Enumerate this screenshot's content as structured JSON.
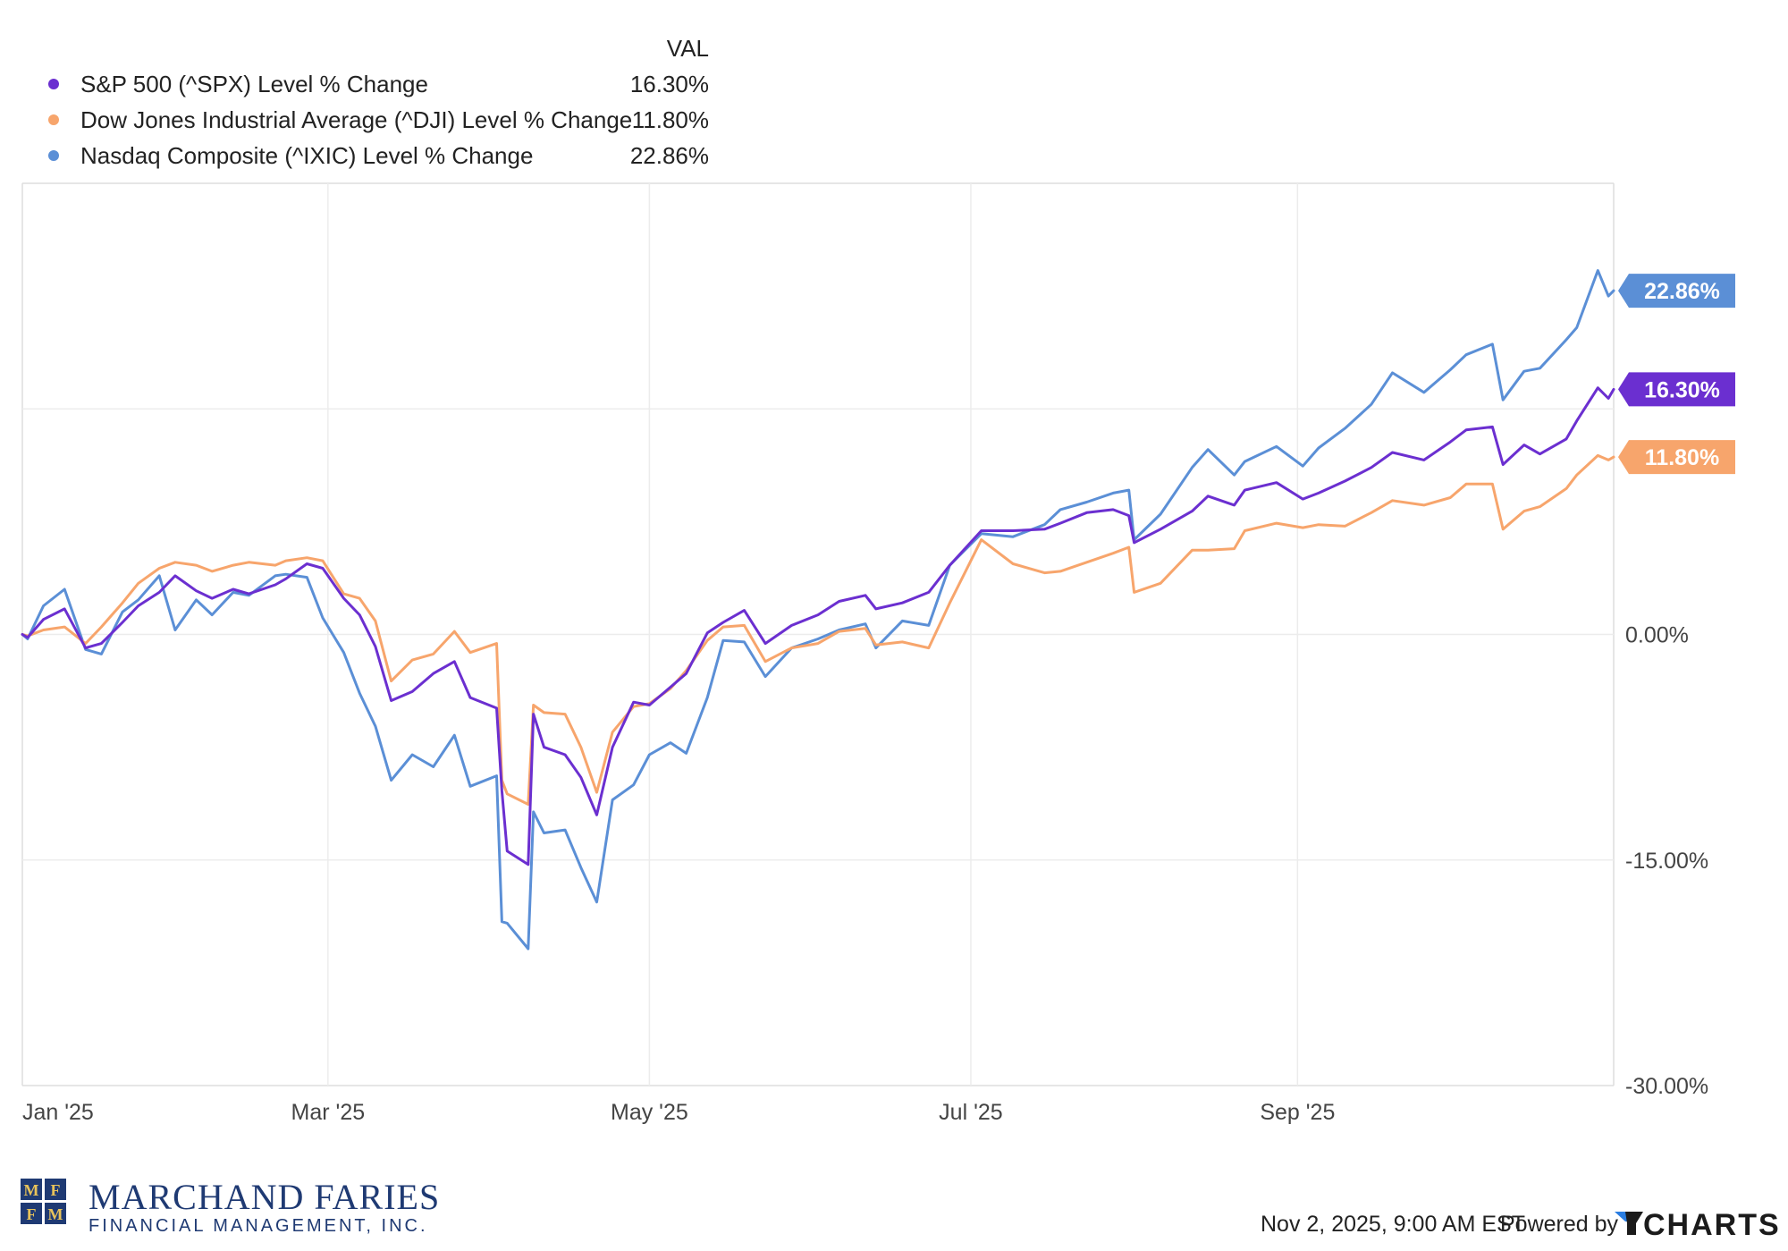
{
  "legend": {
    "value_header": "VAL"
  },
  "chart_data": {
    "type": "line",
    "x_tick_labels": [
      "Jan '25",
      "Mar '25",
      "May '25",
      "Jul '25",
      "Sep '25"
    ],
    "y_tick_labels": [
      "0.00%",
      "-15.00%",
      "-30.00%"
    ],
    "ylim": [
      -30,
      30
    ],
    "y_unit": "%",
    "grid": true,
    "legend_position": "top-left",
    "series": [
      {
        "key": "spx",
        "name": "S&P 500 (^SPX) Level % Change",
        "value_label": "16.30%",
        "end_value": 16.3,
        "color": "#6b2fd0",
        "points": [
          [
            "2025-01-02",
            0.0
          ],
          [
            "2025-01-03",
            -0.2
          ],
          [
            "2025-01-06",
            1.0
          ],
          [
            "2025-01-10",
            1.7
          ],
          [
            "2025-01-14",
            -0.9
          ],
          [
            "2025-01-17",
            -0.6
          ],
          [
            "2025-01-21",
            0.8
          ],
          [
            "2025-01-24",
            1.9
          ],
          [
            "2025-01-28",
            2.8
          ],
          [
            "2025-01-31",
            3.9
          ],
          [
            "2025-02-04",
            2.9
          ],
          [
            "2025-02-07",
            2.4
          ],
          [
            "2025-02-11",
            3.0
          ],
          [
            "2025-02-14",
            2.7
          ],
          [
            "2025-02-19",
            3.3
          ],
          [
            "2025-02-21",
            3.7
          ],
          [
            "2025-02-25",
            4.7
          ],
          [
            "2025-02-28",
            4.4
          ],
          [
            "2025-03-04",
            2.4
          ],
          [
            "2025-03-07",
            1.3
          ],
          [
            "2025-03-10",
            -0.8
          ],
          [
            "2025-03-13",
            -4.4
          ],
          [
            "2025-03-17",
            -3.8
          ],
          [
            "2025-03-21",
            -2.6
          ],
          [
            "2025-03-25",
            -1.8
          ],
          [
            "2025-03-28",
            -4.2
          ],
          [
            "2025-04-02",
            -4.9
          ],
          [
            "2025-04-03",
            -10.4
          ],
          [
            "2025-04-04",
            -14.4
          ],
          [
            "2025-04-08",
            -15.3
          ],
          [
            "2025-04-09",
            -5.3
          ],
          [
            "2025-04-11",
            -7.5
          ],
          [
            "2025-04-15",
            -8.0
          ],
          [
            "2025-04-18",
            -9.5
          ],
          [
            "2025-04-21",
            -12.0
          ],
          [
            "2025-04-24",
            -7.5
          ],
          [
            "2025-04-28",
            -4.5
          ],
          [
            "2025-05-01",
            -4.7
          ],
          [
            "2025-05-05",
            -3.5
          ],
          [
            "2025-05-08",
            -2.6
          ],
          [
            "2025-05-12",
            0.1
          ],
          [
            "2025-05-15",
            0.8
          ],
          [
            "2025-05-19",
            1.6
          ],
          [
            "2025-05-23",
            -0.6
          ],
          [
            "2025-05-28",
            0.6
          ],
          [
            "2025-06-02",
            1.3
          ],
          [
            "2025-06-06",
            2.2
          ],
          [
            "2025-06-11",
            2.6
          ],
          [
            "2025-06-13",
            1.7
          ],
          [
            "2025-06-18",
            2.1
          ],
          [
            "2025-06-23",
            2.8
          ],
          [
            "2025-06-27",
            4.6
          ],
          [
            "2025-07-03",
            6.9
          ],
          [
            "2025-07-09",
            6.9
          ],
          [
            "2025-07-15",
            7.0
          ],
          [
            "2025-07-18",
            7.4
          ],
          [
            "2025-07-23",
            8.1
          ],
          [
            "2025-07-28",
            8.3
          ],
          [
            "2025-07-31",
            7.9
          ],
          [
            "2025-08-01",
            6.1
          ],
          [
            "2025-08-06",
            7.0
          ],
          [
            "2025-08-12",
            8.2
          ],
          [
            "2025-08-15",
            9.2
          ],
          [
            "2025-08-20",
            8.6
          ],
          [
            "2025-08-22",
            9.6
          ],
          [
            "2025-08-28",
            10.1
          ],
          [
            "2025-09-02",
            9.0
          ],
          [
            "2025-09-05",
            9.4
          ],
          [
            "2025-09-10",
            10.2
          ],
          [
            "2025-09-15",
            11.1
          ],
          [
            "2025-09-19",
            12.1
          ],
          [
            "2025-09-25",
            11.6
          ],
          [
            "2025-09-30",
            12.8
          ],
          [
            "2025-10-03",
            13.6
          ],
          [
            "2025-10-08",
            13.8
          ],
          [
            "2025-10-10",
            11.3
          ],
          [
            "2025-10-14",
            12.6
          ],
          [
            "2025-10-17",
            12.0
          ],
          [
            "2025-10-22",
            13.0
          ],
          [
            "2025-10-24",
            14.2
          ],
          [
            "2025-10-28",
            16.4
          ],
          [
            "2025-10-30",
            15.7
          ],
          [
            "2025-10-31",
            16.3
          ]
        ]
      },
      {
        "key": "dji",
        "name": "Dow Jones Industrial Average (^DJI) Level % Change",
        "value_label": "11.80%",
        "end_value": 11.8,
        "color": "#f7a56c",
        "points": [
          [
            "2025-01-02",
            0.0
          ],
          [
            "2025-01-03",
            -0.1
          ],
          [
            "2025-01-06",
            0.3
          ],
          [
            "2025-01-10",
            0.5
          ],
          [
            "2025-01-14",
            -0.6
          ],
          [
            "2025-01-17",
            0.5
          ],
          [
            "2025-01-21",
            2.1
          ],
          [
            "2025-01-24",
            3.4
          ],
          [
            "2025-01-28",
            4.4
          ],
          [
            "2025-01-31",
            4.8
          ],
          [
            "2025-02-04",
            4.6
          ],
          [
            "2025-02-07",
            4.2
          ],
          [
            "2025-02-11",
            4.6
          ],
          [
            "2025-02-14",
            4.8
          ],
          [
            "2025-02-19",
            4.6
          ],
          [
            "2025-02-21",
            4.9
          ],
          [
            "2025-02-25",
            5.1
          ],
          [
            "2025-02-28",
            4.9
          ],
          [
            "2025-03-04",
            2.7
          ],
          [
            "2025-03-07",
            2.4
          ],
          [
            "2025-03-10",
            0.9
          ],
          [
            "2025-03-13",
            -3.1
          ],
          [
            "2025-03-17",
            -1.7
          ],
          [
            "2025-03-21",
            -1.3
          ],
          [
            "2025-03-25",
            0.2
          ],
          [
            "2025-03-28",
            -1.2
          ],
          [
            "2025-04-02",
            -0.6
          ],
          [
            "2025-04-03",
            -9.7
          ],
          [
            "2025-04-04",
            -10.6
          ],
          [
            "2025-04-08",
            -11.3
          ],
          [
            "2025-04-09",
            -4.7
          ],
          [
            "2025-04-11",
            -5.2
          ],
          [
            "2025-04-15",
            -5.3
          ],
          [
            "2025-04-18",
            -7.5
          ],
          [
            "2025-04-21",
            -10.5
          ],
          [
            "2025-04-24",
            -6.5
          ],
          [
            "2025-04-28",
            -4.8
          ],
          [
            "2025-05-01",
            -4.6
          ],
          [
            "2025-05-05",
            -3.6
          ],
          [
            "2025-05-08",
            -2.4
          ],
          [
            "2025-05-12",
            -0.4
          ],
          [
            "2025-05-15",
            0.5
          ],
          [
            "2025-05-19",
            0.6
          ],
          [
            "2025-05-23",
            -1.8
          ],
          [
            "2025-05-28",
            -0.9
          ],
          [
            "2025-06-02",
            -0.6
          ],
          [
            "2025-06-06",
            0.2
          ],
          [
            "2025-06-11",
            0.4
          ],
          [
            "2025-06-13",
            -0.7
          ],
          [
            "2025-06-18",
            -0.5
          ],
          [
            "2025-06-23",
            -0.9
          ],
          [
            "2025-06-27",
            2.1
          ],
          [
            "2025-07-03",
            6.3
          ],
          [
            "2025-07-09",
            4.7
          ],
          [
            "2025-07-15",
            4.1
          ],
          [
            "2025-07-18",
            4.2
          ],
          [
            "2025-07-23",
            4.8
          ],
          [
            "2025-07-28",
            5.4
          ],
          [
            "2025-07-31",
            5.8
          ],
          [
            "2025-08-01",
            2.8
          ],
          [
            "2025-08-06",
            3.4
          ],
          [
            "2025-08-12",
            5.6
          ],
          [
            "2025-08-15",
            5.6
          ],
          [
            "2025-08-20",
            5.7
          ],
          [
            "2025-08-22",
            6.9
          ],
          [
            "2025-08-28",
            7.4
          ],
          [
            "2025-09-02",
            7.1
          ],
          [
            "2025-09-05",
            7.3
          ],
          [
            "2025-09-10",
            7.2
          ],
          [
            "2025-09-15",
            8.1
          ],
          [
            "2025-09-19",
            8.9
          ],
          [
            "2025-09-25",
            8.6
          ],
          [
            "2025-09-30",
            9.1
          ],
          [
            "2025-10-03",
            10.0
          ],
          [
            "2025-10-08",
            10.0
          ],
          [
            "2025-10-10",
            7.0
          ],
          [
            "2025-10-14",
            8.2
          ],
          [
            "2025-10-17",
            8.5
          ],
          [
            "2025-10-22",
            9.7
          ],
          [
            "2025-10-24",
            10.6
          ],
          [
            "2025-10-28",
            11.9
          ],
          [
            "2025-10-30",
            11.6
          ],
          [
            "2025-10-31",
            11.8
          ]
        ]
      },
      {
        "key": "ixic",
        "name": "Nasdaq Composite (^IXIC) Level % Change",
        "value_label": "22.86%",
        "end_value": 22.86,
        "color": "#5b8fd6",
        "points": [
          [
            "2025-01-02",
            0.0
          ],
          [
            "2025-01-03",
            -0.3
          ],
          [
            "2025-01-06",
            1.9
          ],
          [
            "2025-01-10",
            3.0
          ],
          [
            "2025-01-14",
            -1.0
          ],
          [
            "2025-01-17",
            -1.3
          ],
          [
            "2025-01-21",
            1.5
          ],
          [
            "2025-01-24",
            2.3
          ],
          [
            "2025-01-28",
            3.9
          ],
          [
            "2025-01-31",
            0.3
          ],
          [
            "2025-02-04",
            2.3
          ],
          [
            "2025-02-07",
            1.3
          ],
          [
            "2025-02-11",
            2.8
          ],
          [
            "2025-02-14",
            2.6
          ],
          [
            "2025-02-19",
            3.9
          ],
          [
            "2025-02-21",
            4.0
          ],
          [
            "2025-02-25",
            3.8
          ],
          [
            "2025-02-28",
            1.1
          ],
          [
            "2025-03-04",
            -1.2
          ],
          [
            "2025-03-07",
            -3.9
          ],
          [
            "2025-03-10",
            -6.1
          ],
          [
            "2025-03-13",
            -9.7
          ],
          [
            "2025-03-17",
            -8.0
          ],
          [
            "2025-03-21",
            -8.8
          ],
          [
            "2025-03-25",
            -6.7
          ],
          [
            "2025-03-28",
            -10.1
          ],
          [
            "2025-04-02",
            -9.4
          ],
          [
            "2025-04-03",
            -19.1
          ],
          [
            "2025-04-04",
            -19.2
          ],
          [
            "2025-04-08",
            -20.9
          ],
          [
            "2025-04-09",
            -11.8
          ],
          [
            "2025-04-11",
            -13.2
          ],
          [
            "2025-04-15",
            -13.0
          ],
          [
            "2025-04-18",
            -15.5
          ],
          [
            "2025-04-21",
            -17.8
          ],
          [
            "2025-04-24",
            -11.0
          ],
          [
            "2025-04-28",
            -10.0
          ],
          [
            "2025-05-01",
            -8.0
          ],
          [
            "2025-05-05",
            -7.2
          ],
          [
            "2025-05-08",
            -7.9
          ],
          [
            "2025-05-12",
            -4.2
          ],
          [
            "2025-05-15",
            -0.4
          ],
          [
            "2025-05-19",
            -0.5
          ],
          [
            "2025-05-23",
            -2.8
          ],
          [
            "2025-05-28",
            -0.9
          ],
          [
            "2025-06-02",
            -0.3
          ],
          [
            "2025-06-06",
            0.3
          ],
          [
            "2025-06-11",
            0.7
          ],
          [
            "2025-06-13",
            -0.9
          ],
          [
            "2025-06-18",
            0.9
          ],
          [
            "2025-06-23",
            0.6
          ],
          [
            "2025-06-27",
            4.6
          ],
          [
            "2025-07-03",
            6.7
          ],
          [
            "2025-07-09",
            6.5
          ],
          [
            "2025-07-15",
            7.3
          ],
          [
            "2025-07-18",
            8.3
          ],
          [
            "2025-07-23",
            8.8
          ],
          [
            "2025-07-28",
            9.4
          ],
          [
            "2025-07-31",
            9.6
          ],
          [
            "2025-08-01",
            6.3
          ],
          [
            "2025-08-06",
            8.0
          ],
          [
            "2025-08-12",
            11.1
          ],
          [
            "2025-08-15",
            12.3
          ],
          [
            "2025-08-20",
            10.6
          ],
          [
            "2025-08-22",
            11.5
          ],
          [
            "2025-08-28",
            12.5
          ],
          [
            "2025-09-02",
            11.2
          ],
          [
            "2025-09-05",
            12.4
          ],
          [
            "2025-09-10",
            13.7
          ],
          [
            "2025-09-15",
            15.3
          ],
          [
            "2025-09-19",
            17.4
          ],
          [
            "2025-09-25",
            16.1
          ],
          [
            "2025-09-30",
            17.6
          ],
          [
            "2025-10-03",
            18.6
          ],
          [
            "2025-10-08",
            19.3
          ],
          [
            "2025-10-10",
            15.6
          ],
          [
            "2025-10-14",
            17.5
          ],
          [
            "2025-10-17",
            17.7
          ],
          [
            "2025-10-22",
            19.6
          ],
          [
            "2025-10-24",
            20.4
          ],
          [
            "2025-10-28",
            24.2
          ],
          [
            "2025-10-30",
            22.5
          ],
          [
            "2025-10-31",
            22.86
          ]
        ]
      }
    ]
  },
  "footer": {
    "brand_name": "MARCHAND FARIES",
    "brand_subtitle": "FINANCIAL MANAGEMENT, INC.",
    "logo_letters": [
      "M",
      "F",
      "F",
      "M"
    ],
    "timestamp": "Nov 2, 2025, 9:00 AM EST",
    "powered_by": "Powered by",
    "provider": "CHARTS"
  }
}
